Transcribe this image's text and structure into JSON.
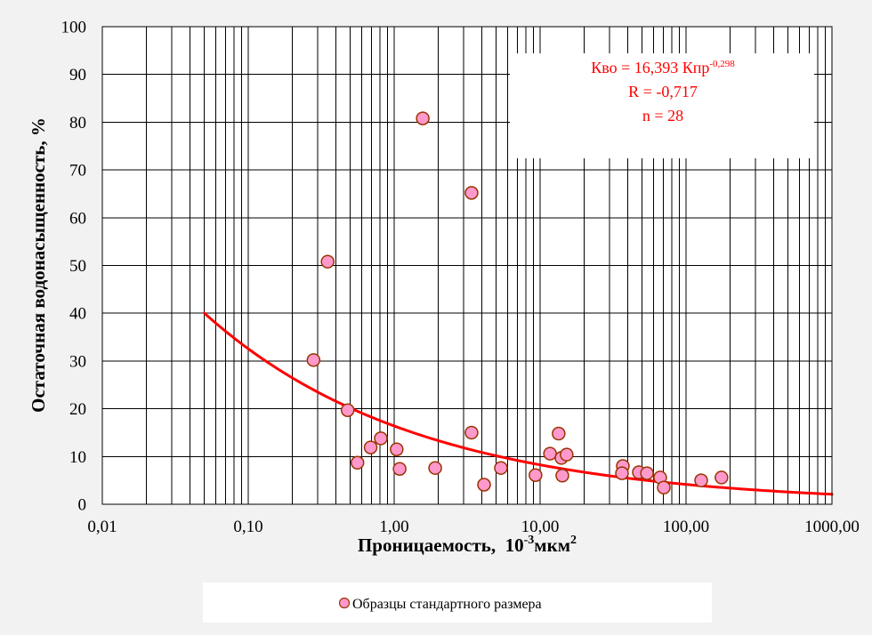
{
  "chart_data": {
    "type": "scatter",
    "x_scale": "log",
    "xlim": [
      0.01,
      1000
    ],
    "ylim": [
      0,
      100
    ],
    "grid": true,
    "xlabel": {
      "text": "Проницаемость,  10",
      "sup": "-3",
      "unit": "мкм",
      "unit_sup": "2"
    },
    "ylabel": "Остаточная водонасыщенность, %",
    "x_ticks": [
      {
        "value": 0.01,
        "label": "0,01"
      },
      {
        "value": 0.1,
        "label": "0,10"
      },
      {
        "value": 1,
        "label": "1,00"
      },
      {
        "value": 10,
        "label": "10,00"
      },
      {
        "value": 100,
        "label": "100,00"
      },
      {
        "value": 1000,
        "label": "1000,00"
      }
    ],
    "y_ticks": [
      {
        "value": 0,
        "label": "0"
      },
      {
        "value": 10,
        "label": "10"
      },
      {
        "value": 20,
        "label": "20"
      },
      {
        "value": 30,
        "label": "30"
      },
      {
        "value": 40,
        "label": "40"
      },
      {
        "value": 50,
        "label": "50"
      },
      {
        "value": 60,
        "label": "60"
      },
      {
        "value": 70,
        "label": "70"
      },
      {
        "value": 80,
        "label": "80"
      },
      {
        "value": 90,
        "label": "90"
      },
      {
        "value": 100,
        "label": "100"
      }
    ],
    "series": [
      {
        "name": "Образцы стандартного размера",
        "marker": "circle",
        "points": [
          [
            0.28,
            30.2
          ],
          [
            0.35,
            50.8
          ],
          [
            0.48,
            19.7
          ],
          [
            0.56,
            8.7
          ],
          [
            0.69,
            11.9
          ],
          [
            0.81,
            13.8
          ],
          [
            1.04,
            11.5
          ],
          [
            1.09,
            7.4
          ],
          [
            1.57,
            80.8
          ],
          [
            1.91,
            7.6
          ],
          [
            3.39,
            65.2
          ],
          [
            3.39,
            15.0
          ],
          [
            4.13,
            4.1
          ],
          [
            5.39,
            7.6
          ],
          [
            9.3,
            6.1
          ],
          [
            11.7,
            10.6
          ],
          [
            13.4,
            14.8
          ],
          [
            14.0,
            9.7
          ],
          [
            15.2,
            10.4
          ],
          [
            14.2,
            6.0
          ],
          [
            36.9,
            8.0
          ],
          [
            36.4,
            6.5
          ],
          [
            47.5,
            6.7
          ],
          [
            54.0,
            6.5
          ],
          [
            66.5,
            5.6
          ],
          [
            70.4,
            3.5
          ],
          [
            127,
            5.0
          ],
          [
            175,
            5.6
          ]
        ]
      }
    ],
    "trendline": {
      "type": "power",
      "a": 16.393,
      "b": -0.298,
      "x_range": [
        0.05,
        1000
      ]
    },
    "annotation": {
      "position": "top-right",
      "equation": "Кво = 16,393 Кпр",
      "equation_exponent": "-0,298",
      "r": "R = -0,717",
      "n": "n = 28"
    },
    "legend": {
      "position": "bottom"
    }
  },
  "colors": {
    "background": "#f2f2f2",
    "plot_background": "#ffffff",
    "point_fill": "#ff99cc",
    "point_stroke": "#993300",
    "trendline": "#ff0000",
    "annotation_text": "#ff0000"
  }
}
